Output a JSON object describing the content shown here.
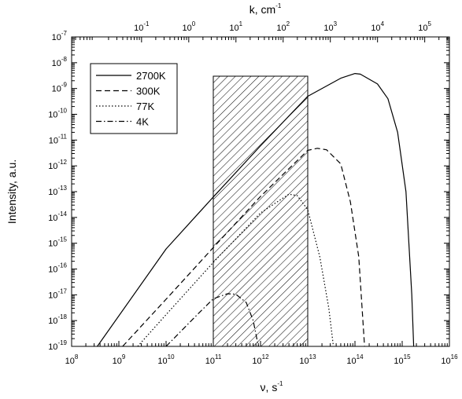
{
  "chart_data": {
    "type": "line",
    "x_scale": "log",
    "y_scale": "log",
    "xlim": [
      100000000.0,
      1e+16
    ],
    "ylim": [
      1e-19,
      1e-07
    ],
    "xlabel": "ν, s",
    "xlabel_exp": "-1",
    "ylabel": "Intensity, a.u.",
    "top_axis_label": "k, cm",
    "top_axis_label_exp": "-1",
    "top_xlim": [
      0.0033,
      333333
    ],
    "top_ticks": [
      {
        "base": "10",
        "exp": "-1",
        "value": 0.1
      },
      {
        "base": "10",
        "exp": "0",
        "value": 1
      },
      {
        "base": "10",
        "exp": "1",
        "value": 10
      },
      {
        "base": "10",
        "exp": "2",
        "value": 100
      },
      {
        "base": "10",
        "exp": "3",
        "value": 1000
      },
      {
        "base": "10",
        "exp": "4",
        "value": 10000
      },
      {
        "base": "10",
        "exp": "5",
        "value": 100000
      }
    ],
    "x_ticks": [
      {
        "base": "10",
        "exp": "8",
        "value": 100000000.0
      },
      {
        "base": "10",
        "exp": "9",
        "value": 1000000000.0
      },
      {
        "base": "10",
        "exp": "10",
        "value": 10000000000.0
      },
      {
        "base": "10",
        "exp": "11",
        "value": 100000000000.0
      },
      {
        "base": "10",
        "exp": "12",
        "value": 1000000000000.0
      },
      {
        "base": "10",
        "exp": "13",
        "value": 10000000000000.0
      },
      {
        "base": "10",
        "exp": "14",
        "value": 100000000000000.0
      },
      {
        "base": "10",
        "exp": "15",
        "value": 1000000000000000.0
      },
      {
        "base": "10",
        "exp": "16",
        "value": 1e+16
      }
    ],
    "y_ticks": [
      {
        "base": "10",
        "exp": "-7",
        "value": 1e-07
      },
      {
        "base": "10",
        "exp": "-8",
        "value": 1e-08
      },
      {
        "base": "10",
        "exp": "-9",
        "value": 1e-09
      },
      {
        "base": "10",
        "exp": "-10",
        "value": 1e-10
      },
      {
        "base": "10",
        "exp": "-11",
        "value": 1e-11
      },
      {
        "base": "10",
        "exp": "-12",
        "value": 1e-12
      },
      {
        "base": "10",
        "exp": "-13",
        "value": 1e-13
      },
      {
        "base": "10",
        "exp": "-14",
        "value": 1e-14
      },
      {
        "base": "10",
        "exp": "-15",
        "value": 1e-15
      },
      {
        "base": "10",
        "exp": "-16",
        "value": 1e-16
      },
      {
        "base": "10",
        "exp": "-17",
        "value": 1e-17
      },
      {
        "base": "10",
        "exp": "-18",
        "value": 1e-18
      },
      {
        "base": "10",
        "exp": "-19",
        "value": 1e-19
      }
    ],
    "shaded_region": {
      "x": [
        100000000000.0,
        10000000000000.0
      ],
      "y_top": 3e-09,
      "y_bottom": 1e-19,
      "pattern": "diagonal hatch"
    },
    "legend_position": "top-left",
    "grid": false,
    "series": [
      {
        "name": "2700K",
        "dash": "solid",
        "points": [
          [
            350000000.0,
            1e-19
          ],
          [
            10000000000.0,
            6e-16
          ],
          [
            100000000000.0,
            6.2e-14
          ],
          [
            1000000000000.0,
            6e-12
          ],
          [
            10000000000000.0,
            5e-10
          ],
          [
            50000000000000.0,
            2.5e-09
          ],
          [
            100000000000000.0,
            3.8e-09
          ],
          [
            130000000000000.0,
            3.6e-09
          ],
          [
            300000000000000.0,
            1.5e-09
          ],
          [
            500000000000000.0,
            4e-10
          ],
          [
            800000000000000.0,
            2e-11
          ],
          [
            1200000000000000.0,
            1e-13
          ],
          [
            1600000000000000.0,
            1e-17
          ],
          [
            1750000000000000.0,
            1e-19
          ]
        ]
      },
      {
        "name": "300K",
        "dash": "dashed",
        "points": [
          [
            1200000000.0,
            1e-19
          ],
          [
            10000000000.0,
            6.7e-18
          ],
          [
            100000000000.0,
            6.8e-16
          ],
          [
            1000000000000.0,
            6.5e-14
          ],
          [
            10000000000000.0,
            4e-12
          ],
          [
            16000000000000.0,
            4.8e-12
          ],
          [
            25000000000000.0,
            4.2e-12
          ],
          [
            50000000000000.0,
            1.2e-12
          ],
          [
            80000000000000.0,
            4e-14
          ],
          [
            120000000000000.0,
            3e-16
          ],
          [
            160000000000000.0,
            1e-19
          ]
        ]
      },
      {
        "name": "77K",
        "dash": "dotted",
        "points": [
          [
            2500000000.0,
            1e-19
          ],
          [
            10000000000.0,
            1.7e-18
          ],
          [
            100000000000.0,
            1.8e-16
          ],
          [
            1000000000000.0,
            1.5e-14
          ],
          [
            4000000000000.0,
            8e-14
          ],
          [
            6000000000000.0,
            7e-14
          ],
          [
            10000000000000.0,
            2e-14
          ],
          [
            18000000000000.0,
            3e-16
          ],
          [
            28000000000000.0,
            3e-18
          ],
          [
            35000000000000.0,
            1e-19
          ]
        ]
      },
      {
        "name": "4K",
        "dash": "dash-dot",
        "points": [
          [
            10000000000.0,
            1e-19
          ],
          [
            50000000000.0,
            2e-18
          ],
          [
            100000000000.0,
            7e-18
          ],
          [
            200000000000.0,
            1.1e-17
          ],
          [
            300000000000.0,
            1.05e-17
          ],
          [
            500000000000.0,
            5e-18
          ],
          [
            700000000000.0,
            1e-18
          ],
          [
            900000000000.0,
            1e-19
          ]
        ]
      }
    ]
  }
}
